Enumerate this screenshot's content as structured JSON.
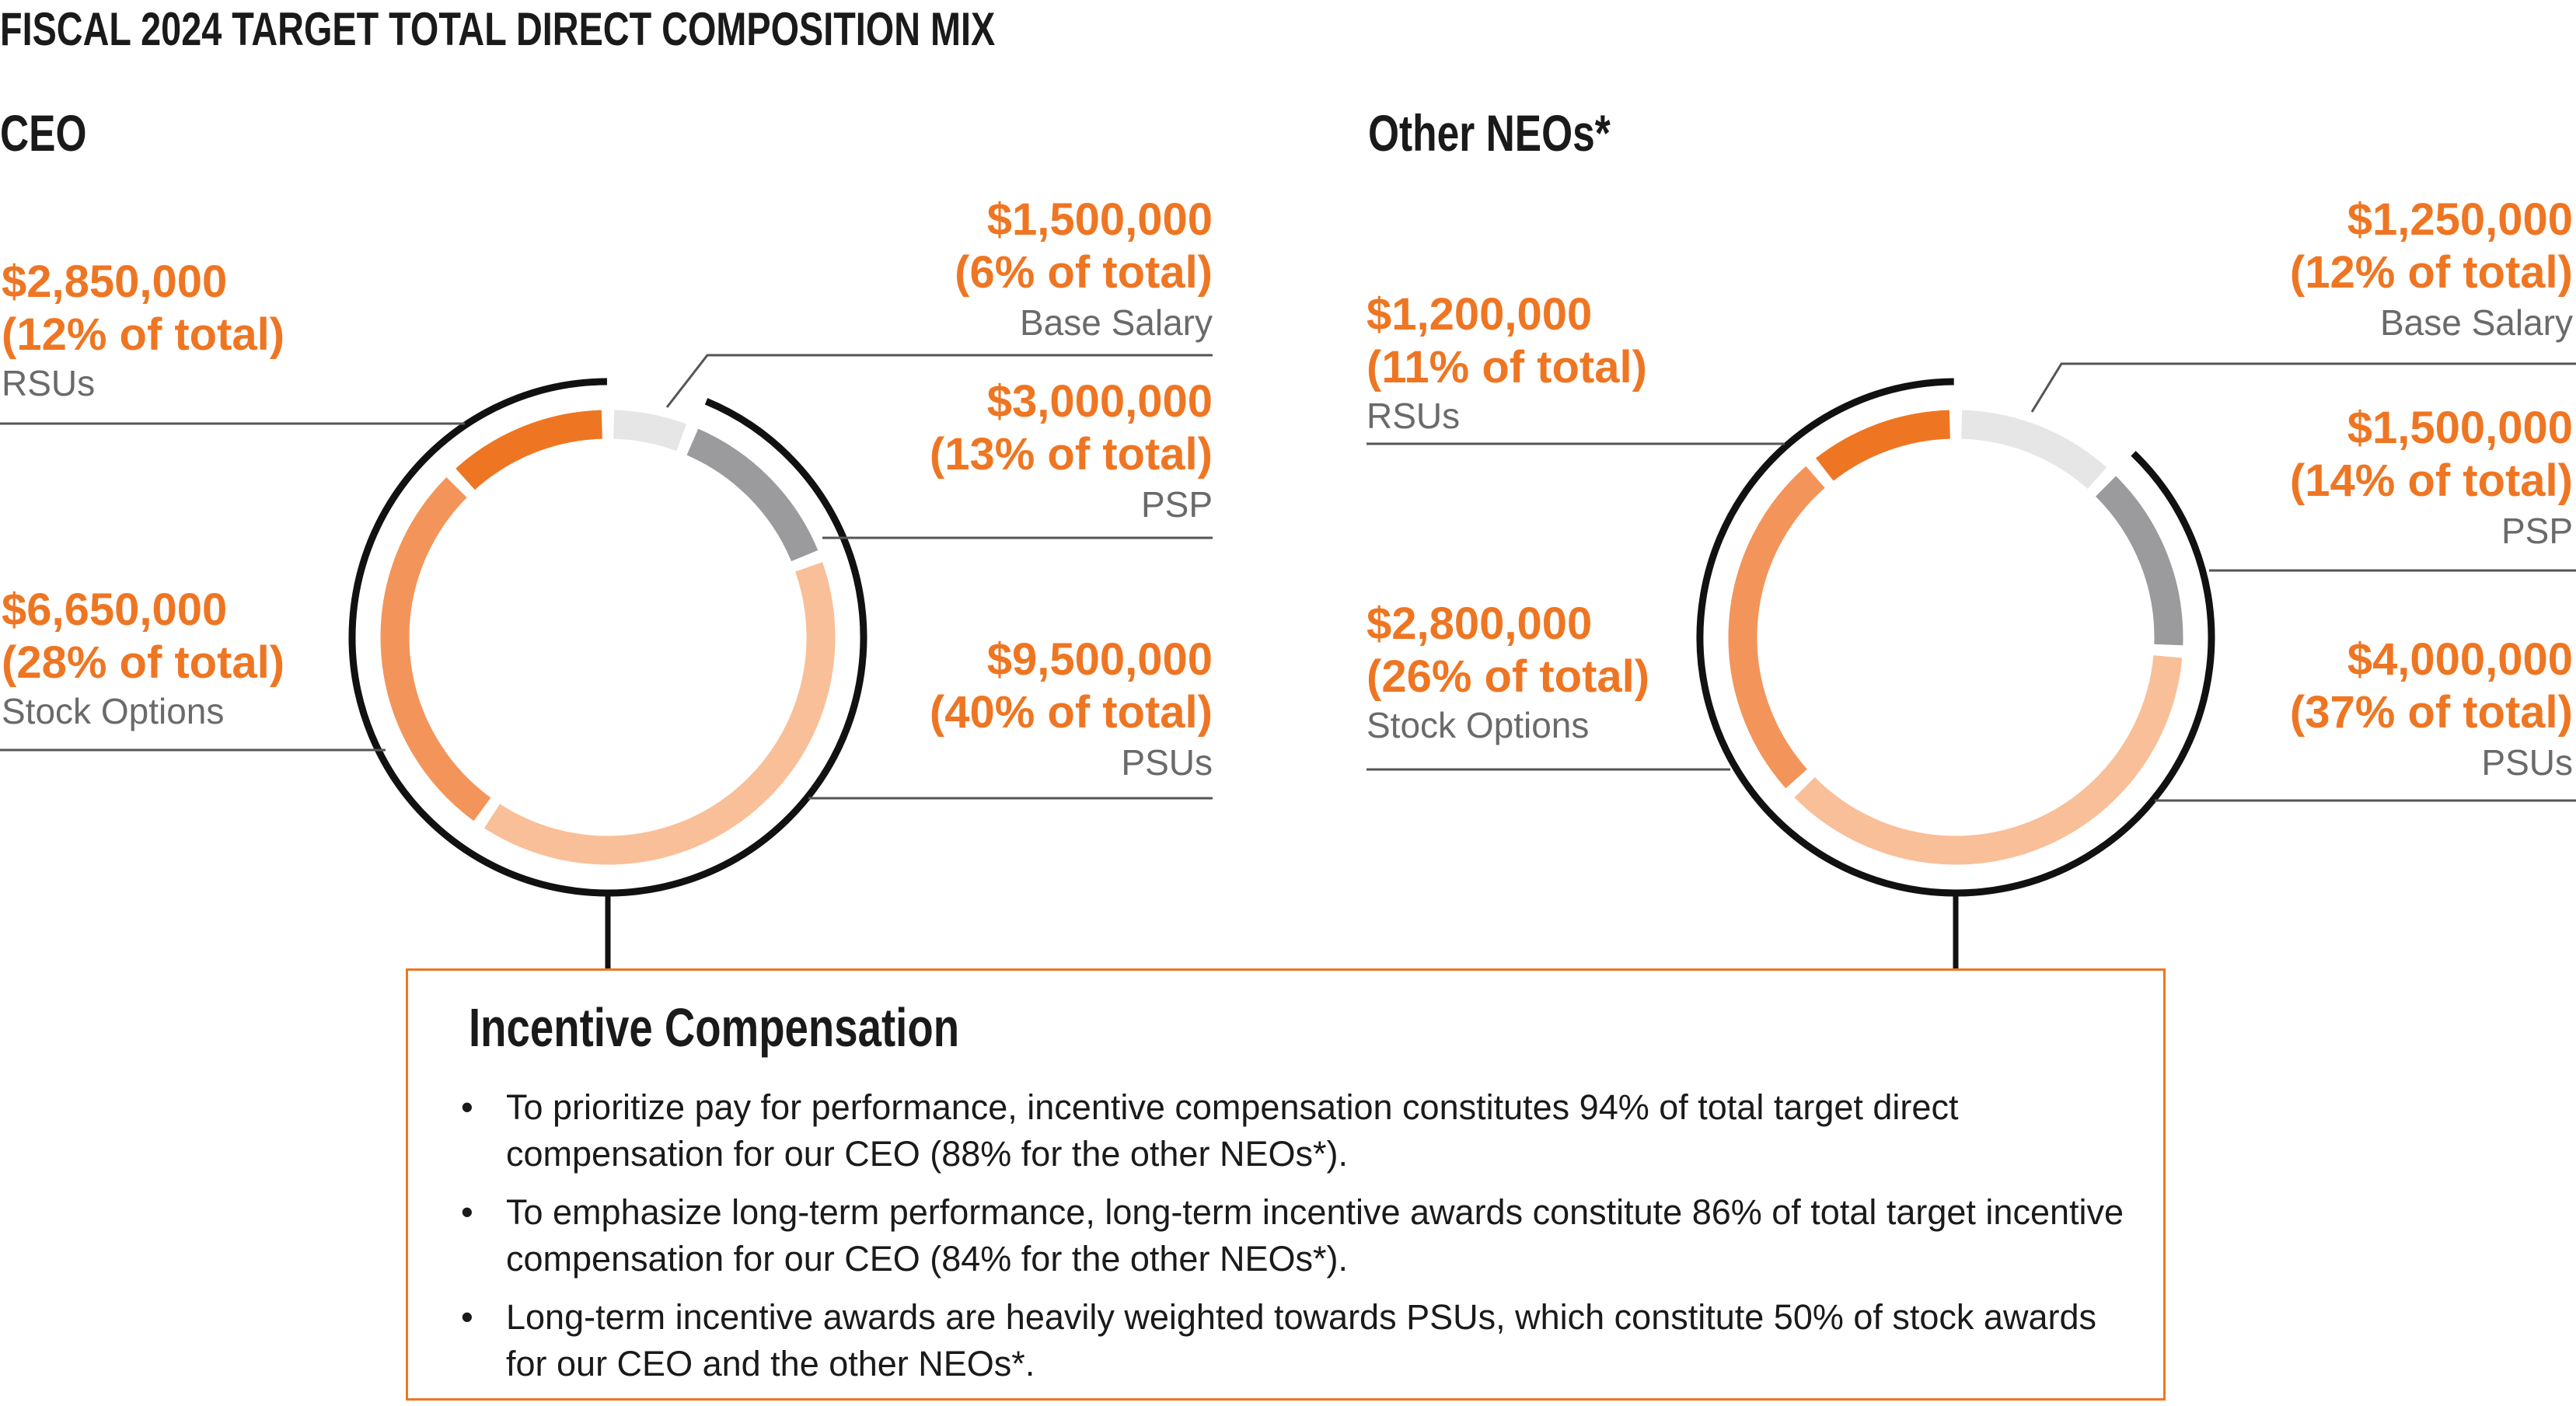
{
  "title": "FISCAL 2024 TARGET TOTAL DIRECT COMPOSITION MIX",
  "chart_data": [
    {
      "type": "pie",
      "variant": "donut",
      "title": "CEO",
      "segments": [
        {
          "label": "Base Salary",
          "amount": "$1,500,000",
          "pct_text": "(6% of total)",
          "value": 6,
          "color": "#e6e6e6"
        },
        {
          "label": "PSP",
          "amount": "$3,000,000",
          "pct_text": "(13% of total)",
          "value": 13,
          "color": "#9b9b9d"
        },
        {
          "label": "PSUs",
          "amount": "$9,500,000",
          "pct_text": "(40% of total)",
          "value": 40,
          "color": "#f9bf98"
        },
        {
          "label": "Stock Options",
          "amount": "$6,650,000",
          "pct_text": "(28% of total)",
          "value": 28,
          "color": "#f3955b"
        },
        {
          "label": "RSUs",
          "amount": "$2,850,000",
          "pct_text": "(12% of total)",
          "value": 12,
          "color": "#ee7623"
        }
      ],
      "incentive_bracket_pct": 94
    },
    {
      "type": "pie",
      "variant": "donut",
      "title": "Other NEOs*",
      "segments": [
        {
          "label": "Base Salary",
          "amount": "$1,250,000",
          "pct_text": "(12% of total)",
          "value": 12,
          "color": "#e6e6e6"
        },
        {
          "label": "PSP",
          "amount": "$1,500,000",
          "pct_text": "(14% of total)",
          "value": 14,
          "color": "#9b9b9d"
        },
        {
          "label": "PSUs",
          "amount": "$4,000,000",
          "pct_text": "(37% of total)",
          "value": 37,
          "color": "#f9bf98"
        },
        {
          "label": "Stock Options",
          "amount": "$2,800,000",
          "pct_text": "(26% of total)",
          "value": 26,
          "color": "#f3955b"
        },
        {
          "label": "RSUs",
          "amount": "$1,200,000",
          "pct_text": "(11% of total)",
          "value": 11,
          "color": "#ee7623"
        }
      ],
      "incentive_bracket_pct": 88
    }
  ],
  "box": {
    "title": "Incentive Compensation",
    "bullets": [
      "To prioritize pay for performance, incentive compensation constitutes 94% of total target direct compensation for our CEO (88% for the other NEOs*).",
      "To emphasize long-term performance, long-term incentive awards constitute 86% of total target incentive compensation for our CEO (84% for the other NEOs*).",
      "Long-term incentive awards are heavily weighted towards PSUs, which constitute 50% of stock awards for our CEO and the other NEOs*."
    ]
  }
}
